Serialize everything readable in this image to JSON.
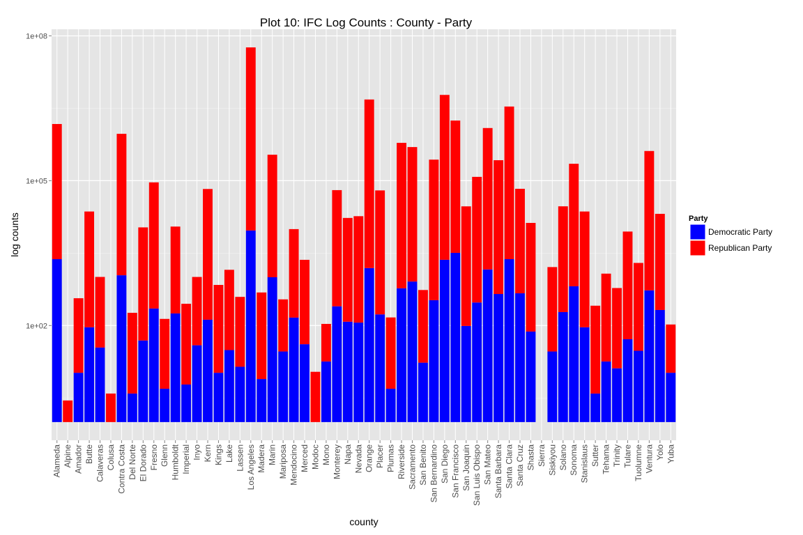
{
  "chart_data": {
    "type": "bar",
    "stacked": true,
    "log_scale": true,
    "grid": true,
    "legend": "right",
    "title": "Plot 10: IFC Log Counts : County - Party",
    "x_label": "county",
    "y_label": "log counts",
    "legend_title": "Party",
    "categories": [
      "Alameda",
      "Alpine",
      "Amador",
      "Butte",
      "Calaveras",
      "Colusa",
      "Contra Costa",
      "Del Norte",
      "El Dorado",
      "Fresno",
      "Glenn",
      "Humboldt",
      "Imperial",
      "Inyo",
      "Kern",
      "Kings",
      "Lake",
      "Lassen",
      "Los Angeles",
      "Madera",
      "Marin",
      "Mariposa",
      "Mendocino",
      "Merced",
      "Modoc",
      "Mono",
      "Monterey",
      "Napa",
      "Nevada",
      "Orange",
      "Placer",
      "Plumas",
      "Riverside",
      "Sacramento",
      "San Benito",
      "San Bernardino",
      "San Diego",
      "San Francisco",
      "San Joaquin",
      "San Luis Obispo",
      "San Mateo",
      "Santa Barbara",
      "Santa Clara",
      "Santa Cruz",
      "Shasta",
      "Sierra",
      "Siskiyou",
      "Solano",
      "Sonoma",
      "Stanislaus",
      "Sutter",
      "Tehama",
      "Trinity",
      "Tulare",
      "Tuolumne",
      "Ventura",
      "Yolo",
      "Yuba"
    ],
    "series": [
      {
        "name": "Democratic Party",
        "color": "#0000ff",
        "values": [
          2370,
          null,
          10.5,
          92,
          35,
          null,
          1100,
          3.9,
          49,
          225,
          4.9,
          178,
          6,
          39,
          132,
          10.5,
          31,
          14,
          9300,
          7.8,
          1000,
          29,
          146,
          41,
          null,
          18,
          250,
          120,
          115,
          1550,
          170,
          4.9,
          590,
          815,
          17,
          335,
          2300,
          3200,
          98,
          300,
          1450,
          450,
          2370,
          465,
          75,
          null,
          29,
          190,
          650,
          92,
          3.9,
          18,
          13,
          52,
          30,
          535,
          210,
          10.5
        ]
      },
      {
        "name": "Republican Party",
        "color": "#ff0000",
        "values": [
          630,
          2.8,
          35,
          250,
          29,
          3.9,
          850,
          47,
          220,
          410,
          28,
          63,
          47,
          26,
          510,
          66,
          46,
          28,
          6200,
          62,
          345,
          12,
          68,
          56,
          11,
          6,
          255,
          141,
          160,
          3100,
          370,
          30,
          1030,
          610,
          32,
          815,
          2600,
          550,
          300,
          400,
          850,
          590,
          1450,
          146,
          178,
          null,
          56,
          155,
          345,
          250,
          66,
          66,
          46,
          170,
          66,
          770,
          98,
          10
        ]
      }
    ],
    "ylim": [
      0.42,
      137000000
    ],
    "yticks": [
      {
        "value": 100,
        "label": "1e+02"
      },
      {
        "value": 100000,
        "label": "1e+05"
      },
      {
        "value": 100000000,
        "label": "1e+08"
      }
    ]
  }
}
